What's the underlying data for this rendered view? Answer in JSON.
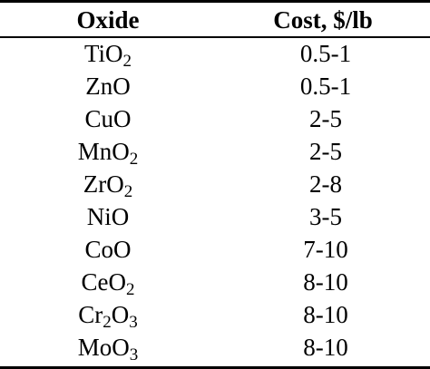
{
  "table": {
    "headers": [
      "Oxide",
      "Cost, $/lb"
    ],
    "rows": [
      {
        "oxide": [
          [
            "Ti",
            ""
          ],
          [
            "O",
            "2"
          ]
        ],
        "cost": "0.5-1"
      },
      {
        "oxide": [
          [
            "ZnO",
            ""
          ]
        ],
        "cost": "0.5-1"
      },
      {
        "oxide": [
          [
            "CuO",
            ""
          ]
        ],
        "cost": "2-5"
      },
      {
        "oxide": [
          [
            "Mn",
            ""
          ],
          [
            "O",
            "2"
          ]
        ],
        "cost": "2-5"
      },
      {
        "oxide": [
          [
            "Zr",
            ""
          ],
          [
            "O",
            "2"
          ]
        ],
        "cost": "2-8"
      },
      {
        "oxide": [
          [
            "NiO",
            ""
          ]
        ],
        "cost": "3-5"
      },
      {
        "oxide": [
          [
            "CoO",
            ""
          ]
        ],
        "cost": "7-10"
      },
      {
        "oxide": [
          [
            "Ce",
            ""
          ],
          [
            "O",
            "2"
          ]
        ],
        "cost": "8-10"
      },
      {
        "oxide": [
          [
            "Cr",
            "2"
          ],
          [
            "O",
            "3"
          ]
        ],
        "cost": "8-10"
      },
      {
        "oxide": [
          [
            "Mo",
            ""
          ],
          [
            "O",
            "3"
          ]
        ],
        "cost": "8-10"
      }
    ]
  }
}
